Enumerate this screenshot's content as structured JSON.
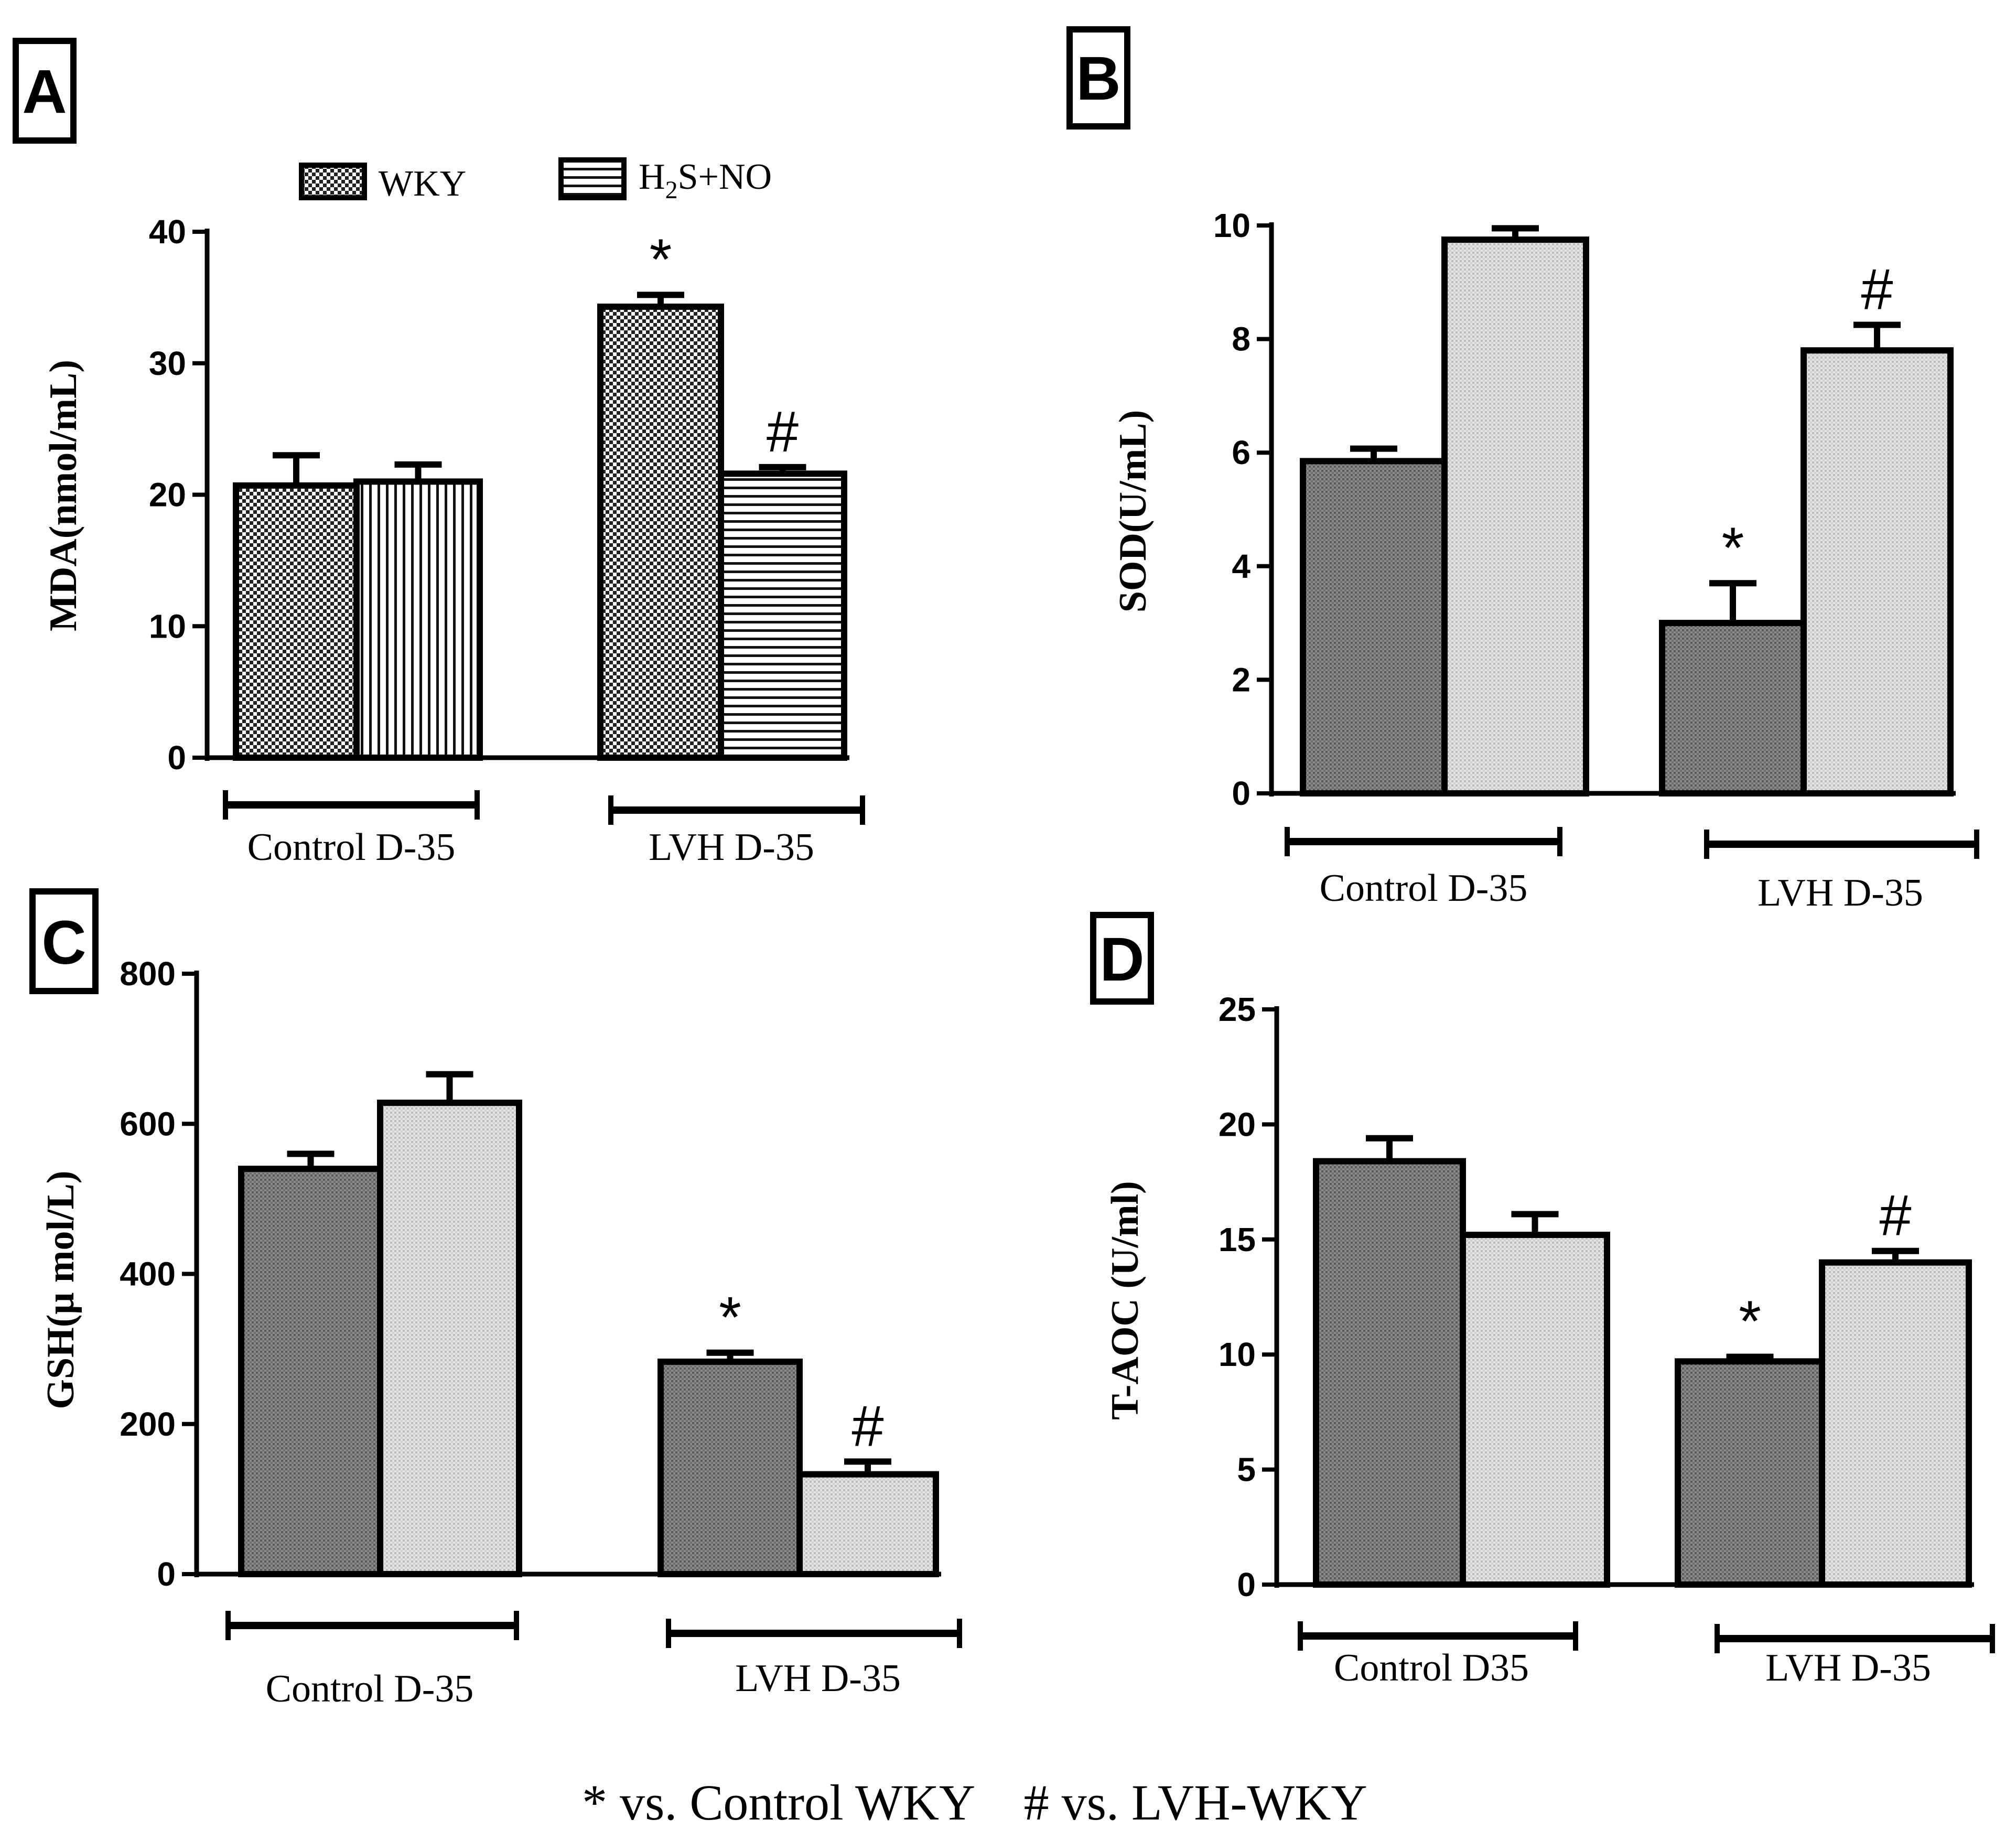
{
  "legend": {
    "wky_label": "WKY",
    "h2s_label_main": "H",
    "h2s_label_sub": "2",
    "h2s_label_rest": "S+NO"
  },
  "footnote": "* vs. Control WKY    # vs. LVH-WKY",
  "chart_data": [
    {
      "panel": "A",
      "type": "bar",
      "ylabel": "MDA(nmol/mL)",
      "ylim": [
        0,
        40
      ],
      "yticks": [
        0,
        10,
        20,
        30,
        40
      ],
      "categories": [
        "Control D-35",
        "LVH D-35"
      ],
      "series": [
        {
          "name": "WKY",
          "values": [
            20.7,
            34.3
          ],
          "errors": [
            2.3,
            0.9
          ]
        },
        {
          "name": "H2S+NO",
          "values": [
            21.0,
            21.6
          ],
          "errors": [
            1.3,
            0.5
          ]
        }
      ],
      "annotations": [
        {
          "category": 1,
          "series": 0,
          "text": "*"
        },
        {
          "category": 1,
          "series": 1,
          "text": "#"
        }
      ]
    },
    {
      "panel": "B",
      "type": "bar",
      "ylabel": "SOD(U/mL)",
      "ylim": [
        0,
        10
      ],
      "yticks": [
        0,
        2,
        4,
        6,
        8,
        10
      ],
      "categories": [
        "Control D-35",
        "LVH D-35"
      ],
      "series": [
        {
          "name": "WKY",
          "values": [
            5.85,
            3.0
          ],
          "errors": [
            0.22,
            0.7
          ]
        },
        {
          "name": "H2S+NO",
          "values": [
            9.75,
            7.8
          ],
          "errors": [
            0.2,
            0.45
          ]
        }
      ],
      "annotations": [
        {
          "category": 1,
          "series": 0,
          "text": "*"
        },
        {
          "category": 1,
          "series": 1,
          "text": "#"
        }
      ]
    },
    {
      "panel": "C",
      "type": "bar",
      "ylabel": "GSH(μ mol/L)",
      "ylim": [
        0,
        800
      ],
      "yticks": [
        0,
        200,
        400,
        600,
        800
      ],
      "categories": [
        "Control D-35",
        "LVH D-35"
      ],
      "series": [
        {
          "name": "WKY",
          "values": [
            540,
            283
          ],
          "errors": [
            20,
            12
          ]
        },
        {
          "name": "H2S+NO",
          "values": [
            628,
            133
          ],
          "errors": [
            38,
            17
          ]
        }
      ],
      "annotations": [
        {
          "category": 1,
          "series": 0,
          "text": "*"
        },
        {
          "category": 1,
          "series": 1,
          "text": "#"
        }
      ]
    },
    {
      "panel": "D",
      "type": "bar",
      "ylabel": "T-AOC (U/ml)",
      "ylim": [
        0,
        25
      ],
      "yticks": [
        0,
        5,
        10,
        15,
        20,
        25
      ],
      "categories": [
        "Control D35",
        "LVH D-35"
      ],
      "series": [
        {
          "name": "WKY",
          "values": [
            18.4,
            9.7
          ],
          "errors": [
            1.0,
            0.2
          ]
        },
        {
          "name": "H2S+NO",
          "values": [
            15.2,
            14.0
          ],
          "errors": [
            0.9,
            0.5
          ]
        }
      ],
      "annotations": [
        {
          "category": 1,
          "series": 0,
          "text": "*"
        },
        {
          "category": 1,
          "series": 1,
          "text": "#"
        }
      ]
    }
  ]
}
